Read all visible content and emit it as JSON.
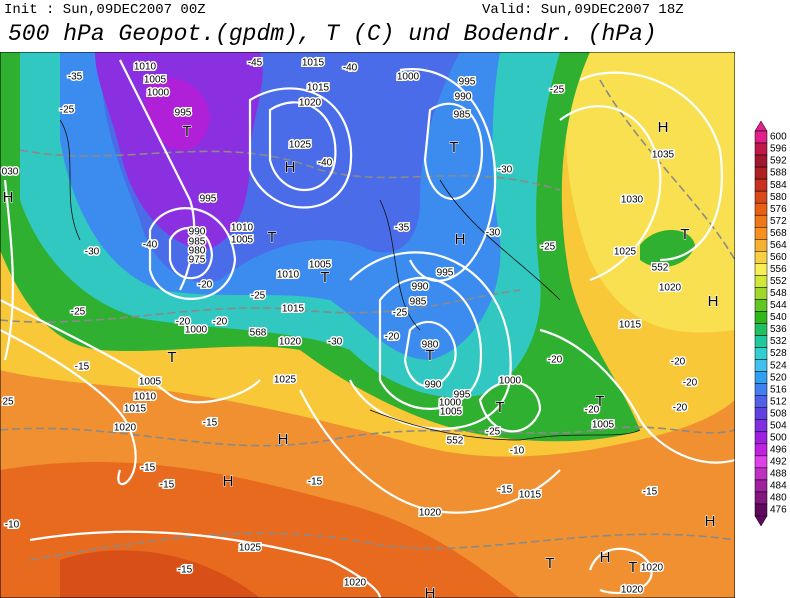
{
  "header": {
    "init": "Init : Sun,09DEC2007 00Z",
    "valid": "Valid: Sun,09DEC2007 18Z",
    "title": "500 hPa Geopot.(gpdm), T (C) und Bodendr. (hPa)"
  },
  "colorbar": {
    "ticks": [
      600,
      596,
      592,
      588,
      584,
      580,
      576,
      572,
      568,
      564,
      560,
      556,
      552,
      548,
      544,
      540,
      536,
      532,
      528,
      524,
      520,
      516,
      512,
      508,
      504,
      500,
      496,
      492,
      488,
      484,
      480,
      476
    ],
    "colors": [
      "#e0208b",
      "#c01848",
      "#a01830",
      "#b02020",
      "#c83020",
      "#d84818",
      "#e86010",
      "#f07818",
      "#f89020",
      "#f8b030",
      "#f8d040",
      "#f8f050",
      "#d0e838",
      "#a0d828",
      "#60c820",
      "#30b818",
      "#20c060",
      "#20c8a0",
      "#30d0d0",
      "#40c0f0",
      "#30a0f0",
      "#4080f0",
      "#5060e8",
      "#6040e0",
      "#8030e0",
      "#a020e0",
      "#c020e0",
      "#e040e8",
      "#c030c0",
      "#a020a0",
      "#801880",
      "#600860"
    ]
  },
  "map_labels": [
    "1010",
    "1005",
    "1000",
    "995",
    "T",
    "-35",
    "-45",
    "1015",
    "-40",
    "1015",
    "1020",
    "1025",
    "H",
    "-40",
    "1000",
    "995",
    "990",
    "985",
    "T",
    "-30",
    "H",
    "-25",
    "H",
    "1035",
    "1030",
    "T",
    "1025",
    "552",
    "1020",
    "H",
    "-25",
    "030",
    "H",
    "995",
    "990",
    "985",
    "980",
    "975",
    "1010",
    "1005",
    "T",
    "1005",
    "T",
    "1010",
    "-25",
    "1015",
    "-20",
    "-30",
    "-40",
    "-25",
    "1000",
    "-20",
    "-20",
    "568",
    "1020",
    "T",
    "-15",
    "1005",
    "1010",
    "1015",
    "1020",
    "1025",
    "-15",
    "H",
    "-15",
    "-15",
    "H",
    "-15",
    "-10",
    "1025",
    "-15",
    "1020",
    "1020",
    "1015",
    "-15",
    "-10",
    "552",
    "-25",
    "1005",
    "1000",
    "995",
    "990",
    "T",
    "980",
    "985",
    "990",
    "995",
    "1000",
    "T",
    "T",
    "1005",
    "-20",
    "-20",
    "-20",
    "-20",
    "-20",
    "1015",
    "-15",
    "H",
    "T",
    "H",
    "T",
    "1020",
    "1020",
    "H",
    "-25",
    "-20",
    "-30",
    "-30",
    "-25",
    "-35",
    "25"
  ]
}
